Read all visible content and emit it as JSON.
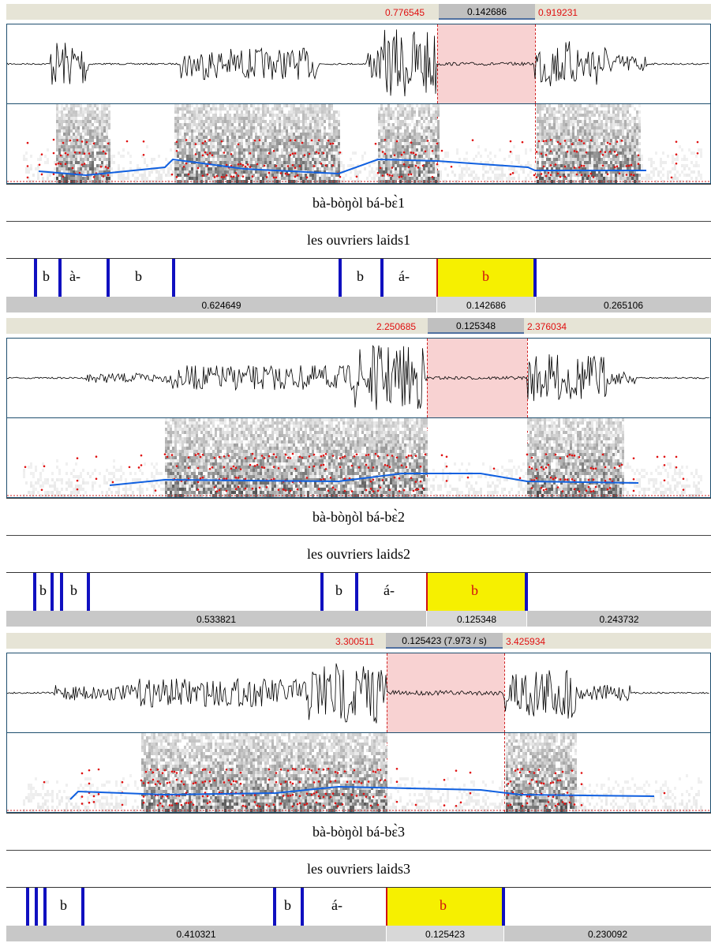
{
  "panels": [
    {
      "sel_start": "0.776545",
      "sel_duration": "0.142686",
      "sel_end": "0.919231",
      "tier_words": "bà-bòŋòl bá-bɛ̀1",
      "tier_gloss": "les ouvriers laids1",
      "segments": [
        {
          "label": "b"
        },
        {
          "label": "à-"
        },
        {
          "label": "b"
        },
        {
          "label": "b"
        },
        {
          "label": "á-"
        },
        {
          "label": "b"
        }
      ],
      "durations": [
        "0.624649",
        "0.142686",
        "0.265106"
      ]
    },
    {
      "sel_start": "2.250685",
      "sel_duration": "0.125348",
      "sel_end": "2.376034",
      "tier_words": "bà-bòŋòl bá-bɛ̀2",
      "tier_gloss": "les ouvriers laids2",
      "segments": [
        {
          "label": "b"
        },
        {
          "label": "b"
        },
        {
          "label": "b"
        },
        {
          "label": "á-"
        },
        {
          "label": "b"
        }
      ],
      "durations": [
        "0.533821",
        "0.125348",
        "0.243732"
      ]
    },
    {
      "sel_start": "3.300511",
      "sel_duration": "0.125423 (7.973 / s)",
      "sel_end": "3.425934",
      "tier_words": "bà-bòŋòl bá-bɛ̀3",
      "tier_gloss": "les ouvriers laids3",
      "segments": [
        {
          "label": "b"
        },
        {
          "label": "b"
        },
        {
          "label": "á-"
        },
        {
          "label": "b"
        }
      ],
      "durations": [
        "0.410321",
        "0.125423",
        "0.230092"
      ]
    }
  ],
  "colors": {
    "selection": "#f8d2d2",
    "highlight": "#f6f000",
    "boundary": "#1010c0",
    "formant": "#e01010",
    "pitch": "#1060e0"
  }
}
